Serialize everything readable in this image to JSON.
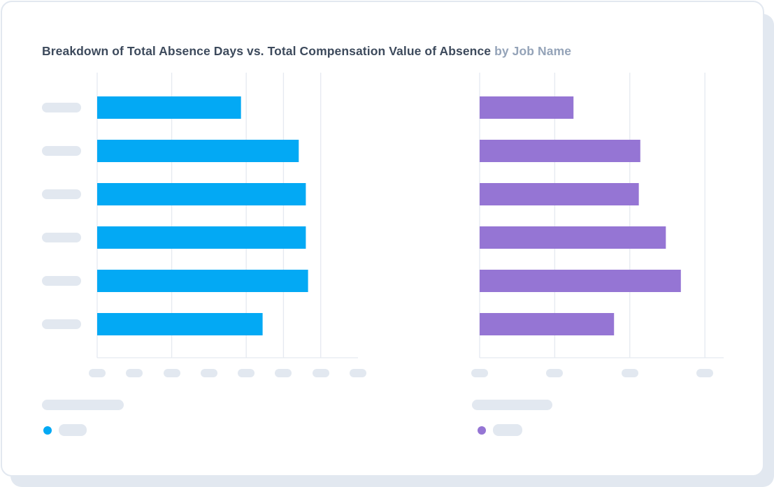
{
  "title": {
    "main": "Breakdown of Total Absence Days vs. Total Compensation Value of Absence",
    "sub": "by Job Name"
  },
  "chart_data": [
    {
      "type": "bar",
      "orientation": "horizontal",
      "categories_count": 6,
      "values": [
        3.86,
        5.41,
        5.6,
        5.6,
        5.66,
        4.44
      ],
      "xlim": [
        0,
        7
      ],
      "grid": true,
      "tick_labels": "placeholder",
      "color": "#03a9f4",
      "legend": "bottom-left"
    },
    {
      "type": "bar",
      "orientation": "horizontal",
      "categories_count": 6,
      "values": [
        1.25,
        2.14,
        2.12,
        2.48,
        2.68,
        1.79
      ],
      "xlim": [
        0,
        3.25
      ],
      "grid": true,
      "tick_labels": "placeholder",
      "color": "#9575d4",
      "legend": "bottom-left"
    }
  ]
}
